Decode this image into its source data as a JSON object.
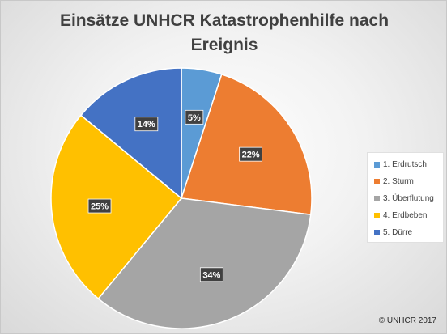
{
  "title_lines": [
    "Einsätze UNHCR Katastrophenhilfe nach",
    "Ereignis"
  ],
  "copyright": "© UNHCR 2017",
  "chart_data": {
    "type": "pie",
    "title": "Einsätze UNHCR Katastrophenhilfe nach Ereignis",
    "legend_position": "right",
    "slices": [
      {
        "name": "1. Erdrutsch",
        "value": 5,
        "label": "5%",
        "color": "#5B9BD5"
      },
      {
        "name": "2. Sturm",
        "value": 22,
        "label": "22%",
        "color": "#ED7D31"
      },
      {
        "name": "3. Überflutung",
        "value": 34,
        "label": "34%",
        "color": "#A5A5A5"
      },
      {
        "name": "4. Erdbeben",
        "value": 25,
        "label": "25%",
        "color": "#FFC000"
      },
      {
        "name": "5. Dürre",
        "value": 14,
        "label": "14%",
        "color": "#4472C4"
      }
    ]
  }
}
